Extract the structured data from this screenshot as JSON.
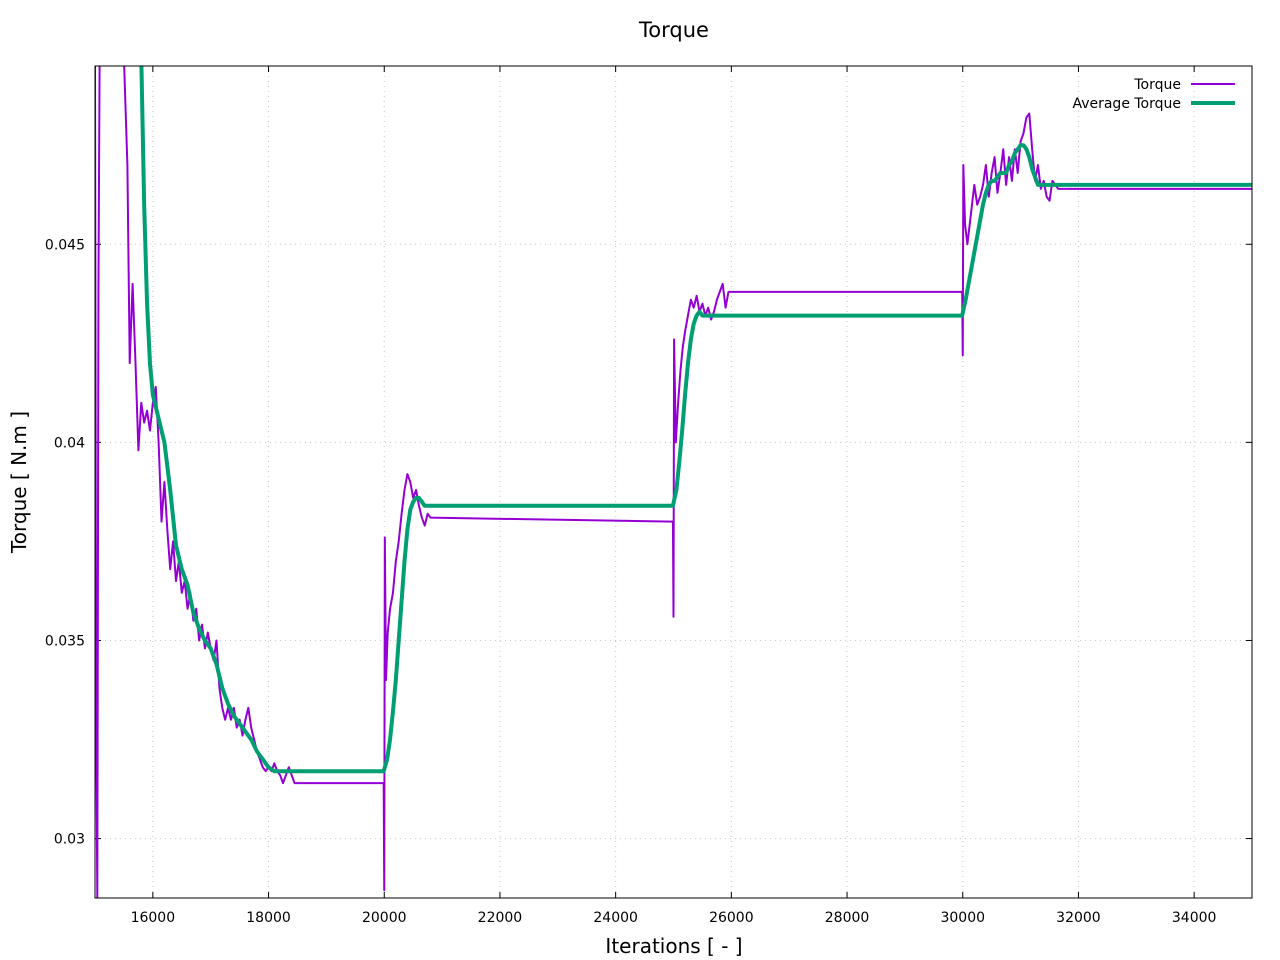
{
  "chart_data": {
    "type": "line",
    "title": "Torque",
    "xlabel": "Iterations [ - ]",
    "ylabel": "Torque [ N.m ]",
    "xlim": [
      15000,
      35000
    ],
    "ylim": [
      0.0285,
      0.0495
    ],
    "xticks": [
      16000,
      18000,
      20000,
      22000,
      24000,
      26000,
      28000,
      30000,
      32000,
      34000
    ],
    "xtick_labels": [
      "16000",
      "18000",
      "20000",
      "22000",
      "24000",
      "26000",
      "28000",
      "30000",
      "32000",
      "34000"
    ],
    "yticks": [
      0.03,
      0.035,
      0.04,
      0.045
    ],
    "ytick_labels": [
      "0.03",
      "0.035",
      "0.04",
      "0.045"
    ],
    "grid": true,
    "legend_position": "top-right",
    "series": [
      {
        "name": "Torque",
        "color": "#9400d3",
        "points": [
          [
            15000,
            0.0497
          ],
          [
            15020,
            0.033
          ],
          [
            15040,
            0.0285
          ],
          [
            15060,
            0.044
          ],
          [
            15080,
            0.0497
          ],
          [
            15500,
            0.0497
          ],
          [
            15560,
            0.047
          ],
          [
            15600,
            0.042
          ],
          [
            15650,
            0.044
          ],
          [
            15700,
            0.042
          ],
          [
            15750,
            0.0398
          ],
          [
            15800,
            0.041
          ],
          [
            15850,
            0.0405
          ],
          [
            15900,
            0.0408
          ],
          [
            15950,
            0.0403
          ],
          [
            16000,
            0.041
          ],
          [
            16050,
            0.0414
          ],
          [
            16100,
            0.04
          ],
          [
            16150,
            0.038
          ],
          [
            16200,
            0.039
          ],
          [
            16250,
            0.0378
          ],
          [
            16300,
            0.0368
          ],
          [
            16350,
            0.0375
          ],
          [
            16400,
            0.0365
          ],
          [
            16450,
            0.037
          ],
          [
            16500,
            0.0362
          ],
          [
            16550,
            0.0365
          ],
          [
            16600,
            0.0358
          ],
          [
            16650,
            0.0362
          ],
          [
            16700,
            0.0355
          ],
          [
            16750,
            0.0358
          ],
          [
            16800,
            0.035
          ],
          [
            16850,
            0.0354
          ],
          [
            16900,
            0.0348
          ],
          [
            16950,
            0.0352
          ],
          [
            17000,
            0.0348
          ],
          [
            17050,
            0.0345
          ],
          [
            17100,
            0.035
          ],
          [
            17150,
            0.0338
          ],
          [
            17200,
            0.0333
          ],
          [
            17250,
            0.033
          ],
          [
            17300,
            0.0333
          ],
          [
            17350,
            0.033
          ],
          [
            17400,
            0.0333
          ],
          [
            17450,
            0.0328
          ],
          [
            17500,
            0.033
          ],
          [
            17550,
            0.0326
          ],
          [
            17600,
            0.033
          ],
          [
            17650,
            0.0333
          ],
          [
            17700,
            0.0328
          ],
          [
            17750,
            0.0325
          ],
          [
            17800,
            0.0322
          ],
          [
            17850,
            0.032
          ],
          [
            17900,
            0.0318
          ],
          [
            17950,
            0.0317
          ],
          [
            18000,
            0.0318
          ],
          [
            18050,
            0.0317
          ],
          [
            18100,
            0.0319
          ],
          [
            18150,
            0.0317
          ],
          [
            18200,
            0.0316
          ],
          [
            18250,
            0.0314
          ],
          [
            18300,
            0.0316
          ],
          [
            18350,
            0.0318
          ],
          [
            18400,
            0.0316
          ],
          [
            18450,
            0.0314
          ],
          [
            18500,
            0.0314
          ],
          [
            19990,
            0.0314
          ],
          [
            20000,
            0.0287
          ],
          [
            20010,
            0.0376
          ],
          [
            20030,
            0.034
          ],
          [
            20060,
            0.0352
          ],
          [
            20100,
            0.0358
          ],
          [
            20150,
            0.0362
          ],
          [
            20200,
            0.037
          ],
          [
            20250,
            0.0375
          ],
          [
            20300,
            0.0382
          ],
          [
            20350,
            0.0388
          ],
          [
            20400,
            0.0392
          ],
          [
            20450,
            0.039
          ],
          [
            20500,
            0.0386
          ],
          [
            20550,
            0.0388
          ],
          [
            20600,
            0.0384
          ],
          [
            20650,
            0.0381
          ],
          [
            20700,
            0.0379
          ],
          [
            20750,
            0.0382
          ],
          [
            20800,
            0.0381
          ],
          [
            24990,
            0.038
          ],
          [
            25000,
            0.0356
          ],
          [
            25010,
            0.0426
          ],
          [
            25040,
            0.04
          ],
          [
            25080,
            0.041
          ],
          [
            25120,
            0.0418
          ],
          [
            25160,
            0.0424
          ],
          [
            25200,
            0.0428
          ],
          [
            25250,
            0.0432
          ],
          [
            25300,
            0.0436
          ],
          [
            25350,
            0.0434
          ],
          [
            25400,
            0.0437
          ],
          [
            25450,
            0.0433
          ],
          [
            25500,
            0.0435
          ],
          [
            25550,
            0.0432
          ],
          [
            25600,
            0.0434
          ],
          [
            25650,
            0.0431
          ],
          [
            25700,
            0.0433
          ],
          [
            25750,
            0.0436
          ],
          [
            25800,
            0.0438
          ],
          [
            25850,
            0.044
          ],
          [
            25900,
            0.0434
          ],
          [
            25950,
            0.0438
          ],
          [
            29990,
            0.0438
          ],
          [
            30000,
            0.0422
          ],
          [
            30010,
            0.047
          ],
          [
            30040,
            0.0455
          ],
          [
            30080,
            0.045
          ],
          [
            30120,
            0.0455
          ],
          [
            30160,
            0.046
          ],
          [
            30200,
            0.0465
          ],
          [
            30250,
            0.046
          ],
          [
            30300,
            0.0462
          ],
          [
            30350,
            0.0465
          ],
          [
            30400,
            0.047
          ],
          [
            30450,
            0.0462
          ],
          [
            30500,
            0.0468
          ],
          [
            30550,
            0.0472
          ],
          [
            30600,
            0.0463
          ],
          [
            30650,
            0.0468
          ],
          [
            30700,
            0.0474
          ],
          [
            30750,
            0.0465
          ],
          [
            30800,
            0.0472
          ],
          [
            30850,
            0.0466
          ],
          [
            30900,
            0.0474
          ],
          [
            30950,
            0.0468
          ],
          [
            31000,
            0.0476
          ],
          [
            31050,
            0.0478
          ],
          [
            31100,
            0.0482
          ],
          [
            31150,
            0.0483
          ],
          [
            31200,
            0.0474
          ],
          [
            31250,
            0.0466
          ],
          [
            31300,
            0.047
          ],
          [
            31350,
            0.0464
          ],
          [
            31400,
            0.0466
          ],
          [
            31450,
            0.0462
          ],
          [
            31500,
            0.0461
          ],
          [
            31550,
            0.0466
          ],
          [
            31600,
            0.0465
          ],
          [
            31650,
            0.0464
          ],
          [
            35000,
            0.0464
          ]
        ]
      },
      {
        "name": "Average Torque",
        "color": "#009e73",
        "points": [
          [
            15800,
            0.0497
          ],
          [
            15850,
            0.046
          ],
          [
            15900,
            0.0435
          ],
          [
            15950,
            0.042
          ],
          [
            16000,
            0.0412
          ],
          [
            16100,
            0.0406
          ],
          [
            16200,
            0.04
          ],
          [
            16300,
            0.0388
          ],
          [
            16400,
            0.0374
          ],
          [
            16500,
            0.0368
          ],
          [
            16600,
            0.0364
          ],
          [
            16700,
            0.0357
          ],
          [
            16800,
            0.0353
          ],
          [
            16900,
            0.035
          ],
          [
            17000,
            0.0348
          ],
          [
            17100,
            0.0344
          ],
          [
            17200,
            0.0338
          ],
          [
            17300,
            0.0334
          ],
          [
            17400,
            0.0331
          ],
          [
            17500,
            0.0329
          ],
          [
            17600,
            0.0327
          ],
          [
            17700,
            0.0325
          ],
          [
            17800,
            0.0322
          ],
          [
            17900,
            0.032
          ],
          [
            18000,
            0.0318
          ],
          [
            18100,
            0.0317
          ],
          [
            18200,
            0.0317
          ],
          [
            18300,
            0.0317
          ],
          [
            19990,
            0.0317
          ],
          [
            20050,
            0.032
          ],
          [
            20100,
            0.0325
          ],
          [
            20150,
            0.0332
          ],
          [
            20200,
            0.034
          ],
          [
            20250,
            0.035
          ],
          [
            20300,
            0.036
          ],
          [
            20350,
            0.037
          ],
          [
            20400,
            0.0378
          ],
          [
            20450,
            0.0383
          ],
          [
            20500,
            0.0385
          ],
          [
            20550,
            0.0386
          ],
          [
            20600,
            0.0386
          ],
          [
            20650,
            0.0385
          ],
          [
            20700,
            0.0384
          ],
          [
            24990,
            0.0384
          ],
          [
            25050,
            0.0388
          ],
          [
            25100,
            0.0395
          ],
          [
            25150,
            0.0403
          ],
          [
            25200,
            0.0412
          ],
          [
            25250,
            0.042
          ],
          [
            25300,
            0.0426
          ],
          [
            25350,
            0.043
          ],
          [
            25400,
            0.0432
          ],
          [
            25450,
            0.0433
          ],
          [
            25500,
            0.0432
          ],
          [
            25600,
            0.0432
          ],
          [
            29990,
            0.0432
          ],
          [
            30050,
            0.0436
          ],
          [
            30100,
            0.044
          ],
          [
            30150,
            0.0444
          ],
          [
            30200,
            0.0448
          ],
          [
            30250,
            0.0452
          ],
          [
            30300,
            0.0456
          ],
          [
            30350,
            0.046
          ],
          [
            30400,
            0.0463
          ],
          [
            30450,
            0.0465
          ],
          [
            30500,
            0.0466
          ],
          [
            30550,
            0.0466
          ],
          [
            30600,
            0.0467
          ],
          [
            30650,
            0.0468
          ],
          [
            30700,
            0.0468
          ],
          [
            30750,
            0.0468
          ],
          [
            30800,
            0.047
          ],
          [
            30850,
            0.0471
          ],
          [
            30900,
            0.0473
          ],
          [
            30950,
            0.0474
          ],
          [
            31000,
            0.0475
          ],
          [
            31050,
            0.0475
          ],
          [
            31100,
            0.0474
          ],
          [
            31150,
            0.0472
          ],
          [
            31200,
            0.0469
          ],
          [
            31250,
            0.0467
          ],
          [
            31300,
            0.0465
          ],
          [
            31350,
            0.0465
          ],
          [
            31400,
            0.0465
          ],
          [
            35000,
            0.0465
          ]
        ]
      }
    ]
  }
}
